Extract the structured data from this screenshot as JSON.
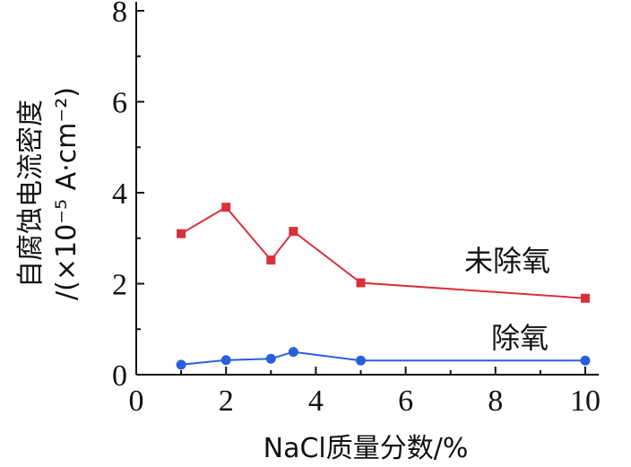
{
  "chart_data": {
    "type": "line",
    "title": "",
    "xlabel": "NaCl质量分数/%",
    "ylabel_line1": "自腐蚀电流密度",
    "ylabel_line2": "/(×10⁻⁵ A·cm⁻²)",
    "xlim": [
      0,
      10.3
    ],
    "ylim": [
      0,
      8
    ],
    "xticks": [
      "0",
      "2",
      "4",
      "6",
      "8",
      "10"
    ],
    "yticks": [
      "0",
      "2",
      "4",
      "6",
      "8"
    ],
    "grid": false,
    "series": [
      {
        "name": "未除氧",
        "color": "#d9303a",
        "marker": "square",
        "x": [
          1,
          2,
          3,
          3.5,
          5,
          10
        ],
        "y": [
          3.1,
          3.68,
          2.52,
          3.15,
          2.02,
          1.68
        ]
      },
      {
        "name": "除氧",
        "color": "#2a5fdc",
        "marker": "circle",
        "x": [
          1,
          2,
          3,
          3.5,
          5,
          10
        ],
        "y": [
          0.22,
          0.32,
          0.35,
          0.5,
          0.31,
          0.31
        ]
      }
    ]
  }
}
